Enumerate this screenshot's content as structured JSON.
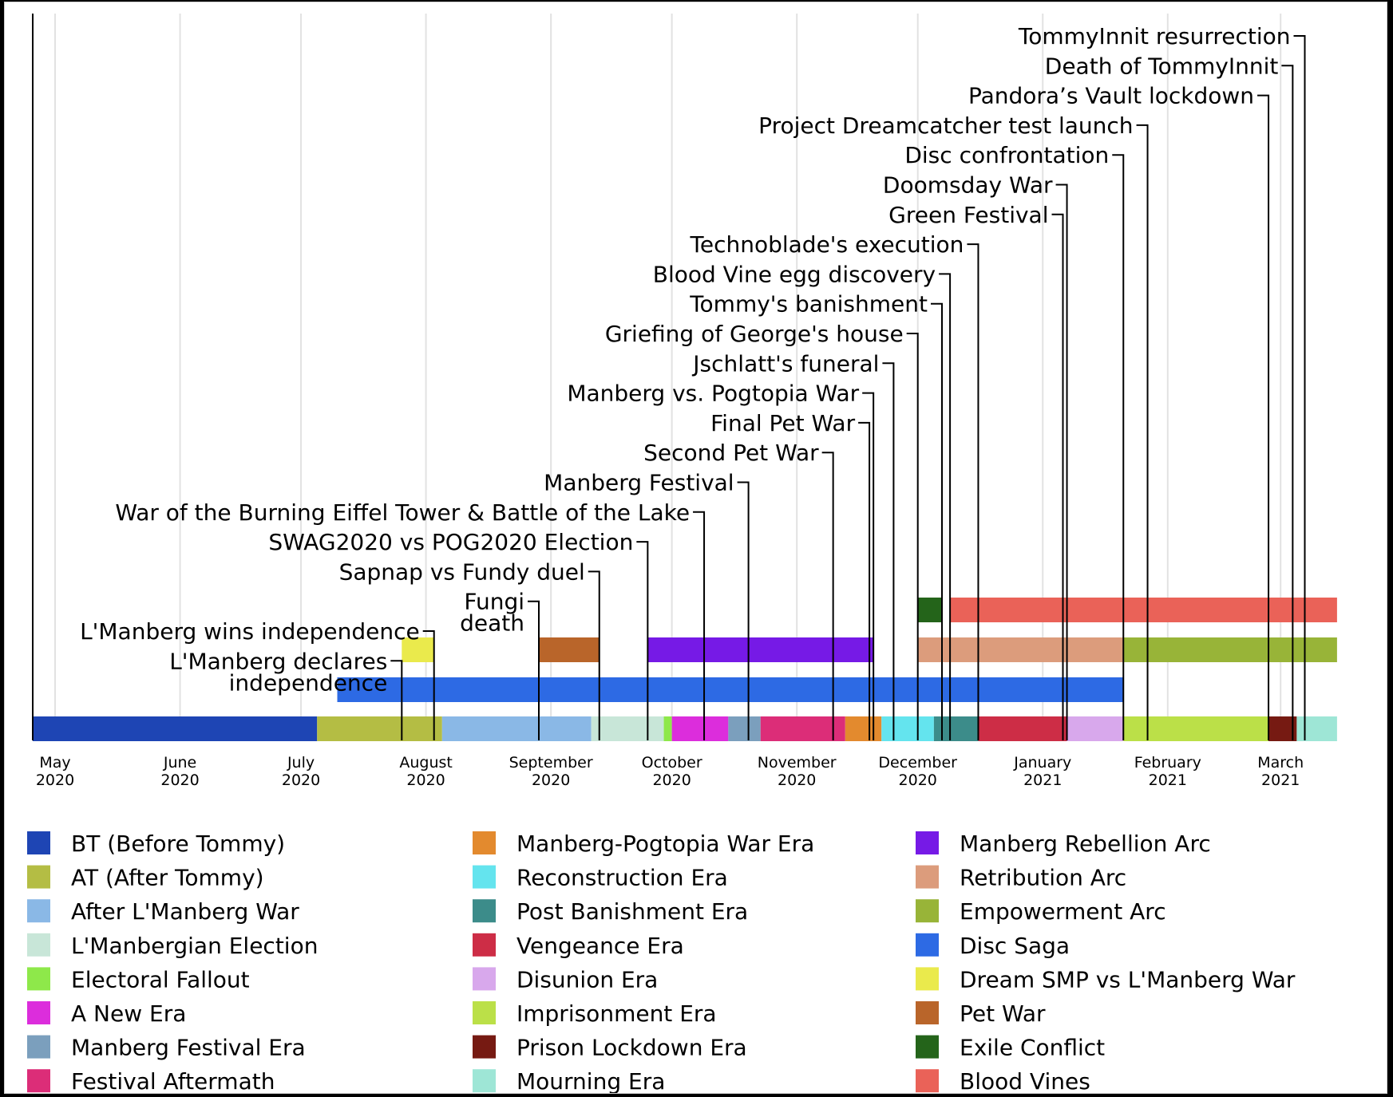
{
  "chart_data": {
    "type": "timeline",
    "title": "",
    "x_range": [
      "2020-05-01",
      "2021-03-15"
    ],
    "months": [
      {
        "date": "2020-05-01",
        "month": "May",
        "year": "2020"
      },
      {
        "date": "2020-06-01",
        "month": "June",
        "year": "2020"
      },
      {
        "date": "2020-07-01",
        "month": "July",
        "year": "2020"
      },
      {
        "date": "2020-08-01",
        "month": "August",
        "year": "2020"
      },
      {
        "date": "2020-09-01",
        "month": "September",
        "year": "2020"
      },
      {
        "date": "2020-10-01",
        "month": "October",
        "year": "2020"
      },
      {
        "date": "2020-11-01",
        "month": "November",
        "year": "2020"
      },
      {
        "date": "2020-12-01",
        "month": "December",
        "year": "2020"
      },
      {
        "date": "2021-01-01",
        "month": "January",
        "year": "2021"
      },
      {
        "date": "2021-02-01",
        "month": "February",
        "year": "2021"
      },
      {
        "date": "2021-03-01",
        "month": "March",
        "year": "2021"
      }
    ],
    "eras": [
      {
        "name": "BT (Before Tommy)",
        "start": "2020-04-25",
        "end": "2020-07-05",
        "color": "#1e45b4"
      },
      {
        "name": "AT (After Tommy)",
        "start": "2020-07-05",
        "end": "2020-08-05",
        "color": "#b4bd44"
      },
      {
        "name": "After L'Manberg War",
        "start": "2020-08-05",
        "end": "2020-09-11",
        "color": "#8ab8e6"
      },
      {
        "name": "L'Manbergian Election",
        "start": "2020-09-11",
        "end": "2020-09-29",
        "color": "#c8e6d8"
      },
      {
        "name": "Electoral Fallout",
        "start": "2020-09-29",
        "end": "2020-10-01",
        "color": "#8ee84a"
      },
      {
        "name": "A New Era",
        "start": "2020-10-01",
        "end": "2020-10-15",
        "color": "#dc2ddc"
      },
      {
        "name": "Manberg Festival Era",
        "start": "2020-10-15",
        "end": "2020-10-23",
        "color": "#7b9fbd"
      },
      {
        "name": "Festival Aftermath",
        "start": "2020-10-23",
        "end": "2020-11-13",
        "color": "#dc2d78"
      },
      {
        "name": "Manberg-Pogtopia War Era",
        "start": "2020-11-13",
        "end": "2020-11-22",
        "color": "#e38a2e"
      },
      {
        "name": "Reconstruction Era",
        "start": "2020-11-22",
        "end": "2020-12-05",
        "color": "#64e4ee"
      },
      {
        "name": "Post Banishment Era",
        "start": "2020-12-05",
        "end": "2020-12-16",
        "color": "#3c8c8a"
      },
      {
        "name": "Vengeance Era",
        "start": "2020-12-16",
        "end": "2021-01-07",
        "color": "#cd2d46"
      },
      {
        "name": "Disunion Era",
        "start": "2021-01-07",
        "end": "2021-01-21",
        "color": "#d8a8ec"
      },
      {
        "name": "Imprisonment Era",
        "start": "2021-01-21",
        "end": "2021-02-26",
        "color": "#bbe048"
      },
      {
        "name": "Prison Lockdown Era",
        "start": "2021-02-26",
        "end": "2021-03-05",
        "color": "#761a12"
      },
      {
        "name": "Mourning Era",
        "start": "2021-03-05",
        "end": "2021-03-15",
        "color": "#9ee6d6"
      }
    ],
    "arcs": [
      {
        "name": "Disc Saga",
        "start": "2020-07-10",
        "end": "2021-01-21",
        "row": 1,
        "color": "#2d6ae4"
      },
      {
        "name": "Dream SMP vs L'Manberg War",
        "start": "2020-07-26",
        "end": "2020-08-03",
        "row": 2,
        "color": "#eaea4c"
      },
      {
        "name": "Pet War",
        "start": "2020-08-29",
        "end": "2020-09-13",
        "row": 2,
        "color": "#b9652a"
      },
      {
        "name": "Manberg Rebellion Arc",
        "start": "2020-09-25",
        "end": "2020-11-20",
        "row": 2,
        "color": "#761ae6"
      },
      {
        "name": "Retribution Arc",
        "start": "2020-12-01",
        "end": "2021-01-21",
        "row": 2,
        "color": "#dc9c7c"
      },
      {
        "name": "Empowerment Arc",
        "start": "2021-01-21",
        "end": "2021-03-15",
        "row": 2,
        "color": "#98b438"
      },
      {
        "name": "Exile Conflict",
        "start": "2020-12-01",
        "end": "2020-12-07",
        "row": 3,
        "color": "#24641a"
      },
      {
        "name": "Blood Vines",
        "start": "2020-12-09",
        "end": "2021-03-15",
        "row": 3,
        "color": "#ea6258"
      }
    ],
    "events": [
      {
        "label": "L'Manberg declares independence",
        "lines": [
          "L'Manberg declares",
          "independence"
        ],
        "date": "2020-07-26"
      },
      {
        "label": "L'Manberg wins independence",
        "lines": [
          "L'Manberg wins independence"
        ],
        "date": "2020-08-03"
      },
      {
        "label": "Fungi death",
        "lines": [
          "Fungi",
          "death"
        ],
        "date": "2020-08-29"
      },
      {
        "label": "Sapnap vs Fundy duel",
        "lines": [
          "Sapnap vs Fundy duel"
        ],
        "date": "2020-09-13"
      },
      {
        "label": "SWAG2020 vs POG2020 Election",
        "lines": [
          "SWAG2020 vs POG2020 Election"
        ],
        "date": "2020-09-25"
      },
      {
        "label": "War of the Burning Eiffel Tower & Battle of the Lake",
        "lines": [
          "War of the Burning Eiffel Tower & Battle of the Lake"
        ],
        "date": "2020-10-09"
      },
      {
        "label": "Manberg Festival",
        "lines": [
          "Manberg Festival"
        ],
        "date": "2020-10-20"
      },
      {
        "label": "Second Pet War",
        "lines": [
          "Second Pet War"
        ],
        "date": "2020-11-10"
      },
      {
        "label": "Final Pet War",
        "lines": [
          "Final Pet War"
        ],
        "date": "2020-11-19"
      },
      {
        "label": "Manberg vs. Pogtopia War",
        "lines": [
          "Manberg vs. Pogtopia War"
        ],
        "date": "2020-11-20"
      },
      {
        "label": "Jschlatt's funeral",
        "lines": [
          "Jschlatt's funeral"
        ],
        "date": "2020-11-25"
      },
      {
        "label": "Griefing of George's house",
        "lines": [
          "Griefing of George's house"
        ],
        "date": "2020-12-01"
      },
      {
        "label": "Tommy's banishment",
        "lines": [
          "Tommy's banishment"
        ],
        "date": "2020-12-07"
      },
      {
        "label": "Blood Vine egg discovery",
        "lines": [
          "Blood Vine egg discovery"
        ],
        "date": "2020-12-09"
      },
      {
        "label": "Technoblade's execution",
        "lines": [
          "Technoblade's execution"
        ],
        "date": "2020-12-16"
      },
      {
        "label": "Green Festival",
        "lines": [
          "Green Festival"
        ],
        "date": "2021-01-06"
      },
      {
        "label": "Doomsday War",
        "lines": [
          "Doomsday War"
        ],
        "date": "2021-01-07"
      },
      {
        "label": "Disc confrontation",
        "lines": [
          "Disc confrontation"
        ],
        "date": "2021-01-21"
      },
      {
        "label": "Project Dreamcatcher test launch",
        "lines": [
          "Project Dreamcatcher test launch"
        ],
        "date": "2021-01-27"
      },
      {
        "label": "Pandora’s Vault lockdown",
        "lines": [
          "Pandora’s Vault lockdown"
        ],
        "date": "2021-02-26"
      },
      {
        "label": "Death of TommyInnit",
        "lines": [
          "Death of TommyInnit"
        ],
        "date": "2021-03-04"
      },
      {
        "label": "TommyInnit resurrection",
        "lines": [
          "TommyInnit resurrection"
        ],
        "date": "2021-03-07"
      }
    ],
    "legend": [
      {
        "label": "BT (Before Tommy)",
        "color": "#1e45b4"
      },
      {
        "label": "AT (After Tommy)",
        "color": "#b4bd44"
      },
      {
        "label": "After L'Manberg War",
        "color": "#8ab8e6"
      },
      {
        "label": "L'Manbergian Election",
        "color": "#c8e6d8"
      },
      {
        "label": "Electoral Fallout",
        "color": "#8ee84a"
      },
      {
        "label": "A New Era",
        "color": "#dc2ddc"
      },
      {
        "label": "Manberg Festival Era",
        "color": "#7b9fbd"
      },
      {
        "label": "Festival Aftermath",
        "color": "#dc2d78"
      },
      {
        "label": "Manberg-Pogtopia War Era",
        "color": "#e38a2e"
      },
      {
        "label": "Reconstruction Era",
        "color": "#64e4ee"
      },
      {
        "label": "Post Banishment Era",
        "color": "#3c8c8a"
      },
      {
        "label": "Vengeance Era",
        "color": "#cd2d46"
      },
      {
        "label": "Disunion Era",
        "color": "#d8a8ec"
      },
      {
        "label": "Imprisonment Era",
        "color": "#bbe048"
      },
      {
        "label": "Prison Lockdown Era",
        "color": "#761a12"
      },
      {
        "label": "Mourning Era",
        "color": "#9ee6d6"
      },
      {
        "label": "Manberg Rebellion Arc",
        "color": "#761ae6"
      },
      {
        "label": "Retribution Arc",
        "color": "#dc9c7c"
      },
      {
        "label": "Empowerment Arc",
        "color": "#98b438"
      },
      {
        "label": "Disc Saga",
        "color": "#2d6ae4"
      },
      {
        "label": "Dream SMP vs L'Manberg War",
        "color": "#eaea4c"
      },
      {
        "label": "Pet War",
        "color": "#b9652a"
      },
      {
        "label": "Exile Conflict",
        "color": "#24641a"
      },
      {
        "label": "Blood Vines",
        "color": "#ea6258"
      }
    ]
  }
}
